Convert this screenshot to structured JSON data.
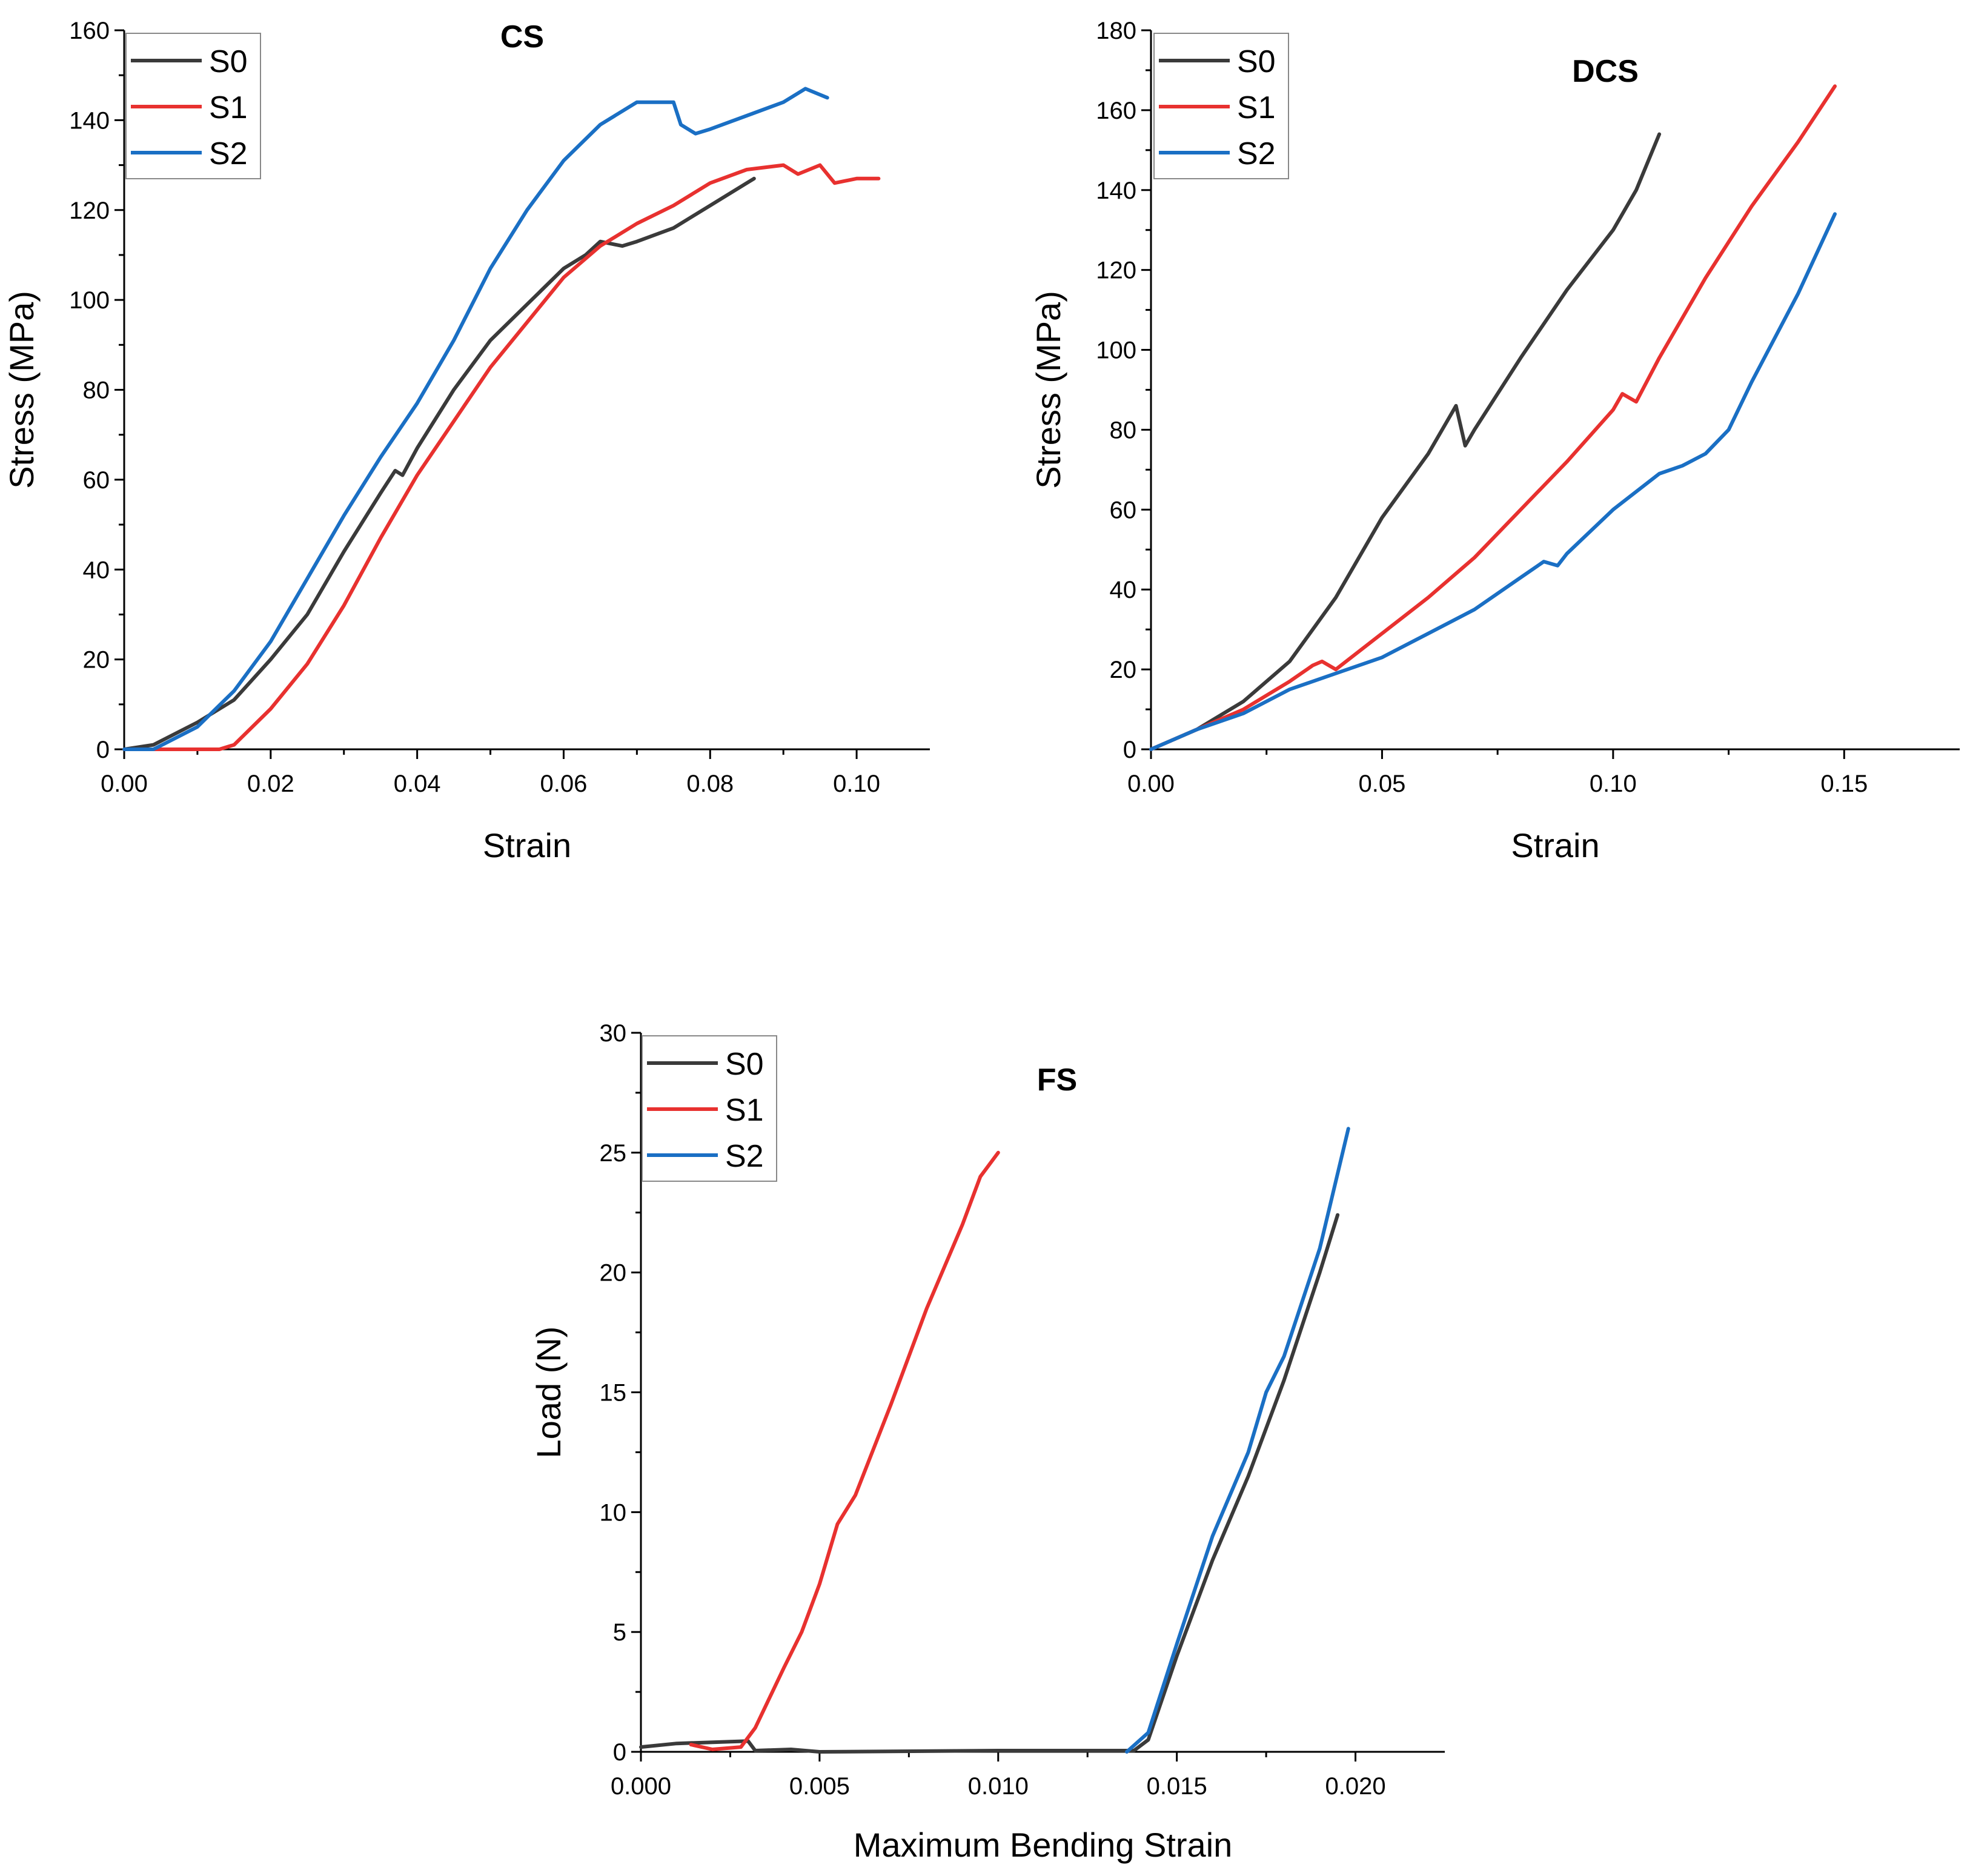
{
  "chart_data": [
    {
      "id": "cs",
      "type": "line",
      "title": "CS",
      "xlabel": "Strain",
      "ylabel": "Stress (MPa)",
      "xlim": [
        0,
        0.11
      ],
      "ylim": [
        0,
        160
      ],
      "xticks": [
        0,
        0.02,
        0.04,
        0.06,
        0.08,
        0.1
      ],
      "xtick_labels": [
        "0.00",
        "0.02",
        "0.04",
        "0.06",
        "0.08",
        "0.10"
      ],
      "yticks": [
        0,
        20,
        40,
        60,
        80,
        100,
        120,
        140,
        160
      ],
      "ytick_labels": [
        "0",
        "20",
        "40",
        "60",
        "80",
        "100",
        "120",
        "140",
        "160"
      ],
      "legend_position": "top-left",
      "series": [
        {
          "name": "S0",
          "color": "#3a3a3a",
          "points": [
            [
              0,
              0
            ],
            [
              0.004,
              1
            ],
            [
              0.01,
              6
            ],
            [
              0.015,
              11
            ],
            [
              0.02,
              20
            ],
            [
              0.025,
              30
            ],
            [
              0.03,
              44
            ],
            [
              0.035,
              57
            ],
            [
              0.037,
              62
            ],
            [
              0.038,
              61
            ],
            [
              0.04,
              67
            ],
            [
              0.045,
              80
            ],
            [
              0.05,
              91
            ],
            [
              0.055,
              99
            ],
            [
              0.06,
              107
            ],
            [
              0.063,
              110
            ],
            [
              0.065,
              113
            ],
            [
              0.068,
              112
            ],
            [
              0.07,
              113
            ],
            [
              0.075,
              116
            ],
            [
              0.08,
              121
            ],
            [
              0.085,
              126
            ],
            [
              0.086,
              127
            ]
          ]
        },
        {
          "name": "S1",
          "color": "#e8312f",
          "points": [
            [
              0,
              0
            ],
            [
              0.013,
              0
            ],
            [
              0.015,
              1
            ],
            [
              0.02,
              9
            ],
            [
              0.025,
              19
            ],
            [
              0.03,
              32
            ],
            [
              0.035,
              47
            ],
            [
              0.04,
              61
            ],
            [
              0.045,
              73
            ],
            [
              0.05,
              85
            ],
            [
              0.055,
              95
            ],
            [
              0.06,
              105
            ],
            [
              0.065,
              112
            ],
            [
              0.07,
              117
            ],
            [
              0.075,
              121
            ],
            [
              0.08,
              126
            ],
            [
              0.085,
              129
            ],
            [
              0.09,
              130
            ],
            [
              0.092,
              128
            ],
            [
              0.095,
              130
            ],
            [
              0.097,
              126
            ],
            [
              0.1,
              127
            ],
            [
              0.103,
              127
            ]
          ]
        },
        {
          "name": "S2",
          "color": "#1a6fc4",
          "points": [
            [
              0,
              0
            ],
            [
              0.004,
              0
            ],
            [
              0.01,
              5
            ],
            [
              0.015,
              13
            ],
            [
              0.02,
              24
            ],
            [
              0.025,
              38
            ],
            [
              0.03,
              52
            ],
            [
              0.035,
              65
            ],
            [
              0.04,
              77
            ],
            [
              0.045,
              91
            ],
            [
              0.05,
              107
            ],
            [
              0.055,
              120
            ],
            [
              0.06,
              131
            ],
            [
              0.065,
              139
            ],
            [
              0.07,
              144
            ],
            [
              0.075,
              144
            ],
            [
              0.076,
              139
            ],
            [
              0.078,
              137
            ],
            [
              0.08,
              138
            ],
            [
              0.085,
              141
            ],
            [
              0.09,
              144
            ],
            [
              0.093,
              147
            ],
            [
              0.096,
              145
            ]
          ]
        }
      ]
    },
    {
      "id": "dcs",
      "type": "line",
      "title": "DCS",
      "xlabel": "Strain",
      "ylabel": "Stress (MPa)",
      "xlim": [
        0,
        0.175
      ],
      "ylim": [
        0,
        180
      ],
      "xticks": [
        0,
        0.05,
        0.1,
        0.15
      ],
      "xtick_labels": [
        "0.00",
        "0.05",
        "0.10",
        "0.15"
      ],
      "yticks": [
        0,
        20,
        40,
        60,
        80,
        100,
        120,
        140,
        160,
        180
      ],
      "ytick_labels": [
        "0",
        "20",
        "40",
        "60",
        "80",
        "100",
        "120",
        "140",
        "160",
        "180"
      ],
      "legend_position": "top-left",
      "series": [
        {
          "name": "S0",
          "color": "#3a3a3a",
          "points": [
            [
              0,
              0
            ],
            [
              0.01,
              5
            ],
            [
              0.02,
              12
            ],
            [
              0.03,
              22
            ],
            [
              0.04,
              38
            ],
            [
              0.05,
              58
            ],
            [
              0.06,
              74
            ],
            [
              0.065,
              84
            ],
            [
              0.066,
              86
            ],
            [
              0.068,
              76
            ],
            [
              0.07,
              80
            ],
            [
              0.08,
              98
            ],
            [
              0.09,
              115
            ],
            [
              0.1,
              130
            ],
            [
              0.105,
              140
            ],
            [
              0.11,
              154
            ]
          ]
        },
        {
          "name": "S1",
          "color": "#e8312f",
          "points": [
            [
              0,
              0
            ],
            [
              0.01,
              5
            ],
            [
              0.02,
              10
            ],
            [
              0.03,
              17
            ],
            [
              0.035,
              21
            ],
            [
              0.037,
              22
            ],
            [
              0.04,
              20
            ],
            [
              0.05,
              29
            ],
            [
              0.06,
              38
            ],
            [
              0.07,
              48
            ],
            [
              0.08,
              60
            ],
            [
              0.09,
              72
            ],
            [
              0.1,
              85
            ],
            [
              0.102,
              89
            ],
            [
              0.105,
              87
            ],
            [
              0.11,
              98
            ],
            [
              0.12,
              118
            ],
            [
              0.13,
              136
            ],
            [
              0.14,
              152
            ],
            [
              0.148,
              166
            ]
          ]
        },
        {
          "name": "S2",
          "color": "#1a6fc4",
          "points": [
            [
              0,
              0
            ],
            [
              0.01,
              5
            ],
            [
              0.02,
              9
            ],
            [
              0.03,
              15
            ],
            [
              0.04,
              19
            ],
            [
              0.05,
              23
            ],
            [
              0.06,
              29
            ],
            [
              0.07,
              35
            ],
            [
              0.08,
              43
            ],
            [
              0.085,
              47
            ],
            [
              0.088,
              46
            ],
            [
              0.09,
              49
            ],
            [
              0.1,
              60
            ],
            [
              0.11,
              69
            ],
            [
              0.115,
              71
            ],
            [
              0.12,
              74
            ],
            [
              0.125,
              80
            ],
            [
              0.13,
              92
            ],
            [
              0.14,
              114
            ],
            [
              0.148,
              134
            ]
          ]
        }
      ]
    },
    {
      "id": "fs",
      "type": "line",
      "title": "FS",
      "xlabel": "Maximum Bending Strain",
      "ylabel": "Load (N)",
      "xlim": [
        0,
        0.0225
      ],
      "ylim": [
        0,
        30
      ],
      "xticks": [
        0,
        0.005,
        0.01,
        0.015,
        0.02
      ],
      "xtick_labels": [
        "0.000",
        "0.005",
        "0.010",
        "0.015",
        "0.020"
      ],
      "yticks": [
        0,
        5,
        10,
        15,
        20,
        25,
        30
      ],
      "ytick_labels": [
        "0",
        "5",
        "10",
        "15",
        "20",
        "25",
        "30"
      ],
      "legend_position": "top-left",
      "series": [
        {
          "name": "S0",
          "color": "#3a3a3a",
          "points": [
            [
              0,
              0.2
            ],
            [
              0.001,
              0.35
            ],
            [
              0.002,
              0.4
            ],
            [
              0.003,
              0.45
            ],
            [
              0.0032,
              0.05
            ],
            [
              0.0042,
              0.1
            ],
            [
              0.005,
              0
            ],
            [
              0.01,
              0.05
            ],
            [
              0.0138,
              0.05
            ],
            [
              0.0142,
              0.5
            ],
            [
              0.015,
              4
            ],
            [
              0.016,
              8
            ],
            [
              0.017,
              11.5
            ],
            [
              0.018,
              15.5
            ],
            [
              0.019,
              20
            ],
            [
              0.0195,
              22.4
            ]
          ]
        },
        {
          "name": "S1",
          "color": "#e8312f",
          "points": [
            [
              0.0014,
              0.3
            ],
            [
              0.002,
              0.1
            ],
            [
              0.0028,
              0.2
            ],
            [
              0.0032,
              1
            ],
            [
              0.004,
              3.5
            ],
            [
              0.0045,
              5
            ],
            [
              0.005,
              7
            ],
            [
              0.0055,
              9.5
            ],
            [
              0.006,
              10.7
            ],
            [
              0.007,
              14.5
            ],
            [
              0.008,
              18.5
            ],
            [
              0.009,
              22
            ],
            [
              0.0095,
              24
            ],
            [
              0.01,
              25
            ]
          ]
        },
        {
          "name": "S2",
          "color": "#1a6fc4",
          "points": [
            [
              0.0136,
              0
            ],
            [
              0.0142,
              0.8
            ],
            [
              0.015,
              4.5
            ],
            [
              0.016,
              9
            ],
            [
              0.017,
              12.5
            ],
            [
              0.0175,
              15
            ],
            [
              0.018,
              16.5
            ],
            [
              0.019,
              21
            ],
            [
              0.0198,
              26
            ]
          ]
        }
      ]
    }
  ]
}
